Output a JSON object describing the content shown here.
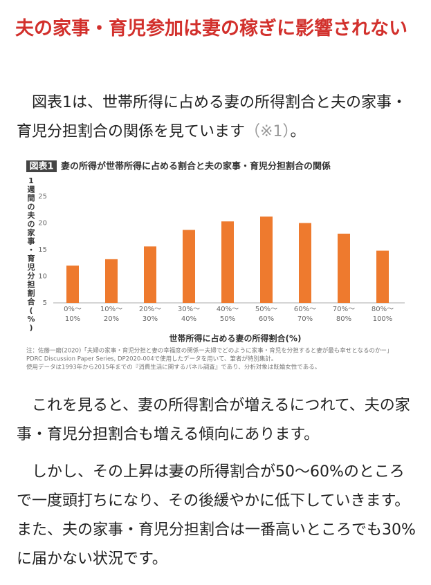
{
  "heading": "夫の家事・育児参加は妻の稼ぎに影響されない",
  "intro": [
    "図表1は、世帯所得に占める妻の所得割合と夫の家事・育児分担割合の関係を見ています",
    "（※1）",
    "。"
  ],
  "paragraphs": [
    "これを見ると、妻の所得割合が増えるにつれて、夫の家事・育児分担割合も増える傾向にあります。",
    "しかし、その上昇は妻の所得割合が50〜60%のところで一度頭打ちになり、その後緩やかに低下していきます。また、夫の家事・育児分担割合は一番高いところでも30%に届かない状況です。"
  ],
  "chart_data": {
    "type": "bar",
    "badge": "図表1",
    "title": "妻の所得が世帯所得に占める割合と夫の家事・育児分担割合の関係",
    "y_label": "1週間の夫の家事・育児分担割合(%)",
    "x_label": "世帯所得に占める妻の所得割合(%)",
    "categories": [
      "0%〜10%",
      "10%〜20%",
      "20%〜30%",
      "30%〜40%",
      "40%〜50%",
      "50%〜60%",
      "60%〜70%",
      "70%〜80%",
      "80%〜100%"
    ],
    "values": [
      12,
      13.2,
      15.6,
      18.7,
      20.3,
      21.2,
      20.0,
      18.0,
      14.8
    ],
    "color": "#ee7a2e",
    "ylim": [
      5,
      27
    ],
    "yticks": [
      5,
      10,
      15,
      20,
      25
    ],
    "grid": false,
    "notes": [
      "注：佐藤一磨(2020)「夫婦の家事・育児分担と妻の幸福度の関係ー夫婦でどのように家事・育児を分担すると妻が最も幸せとなるのかー」",
      "PDRC Discussion Paper Series, DP2020-004で使用したデータを用いて、筆者が特別集計。",
      "使用データは1993年から2015年までの『消費生活に関するパネル調査』であり、分析対象は既婚女性である。"
    ]
  }
}
